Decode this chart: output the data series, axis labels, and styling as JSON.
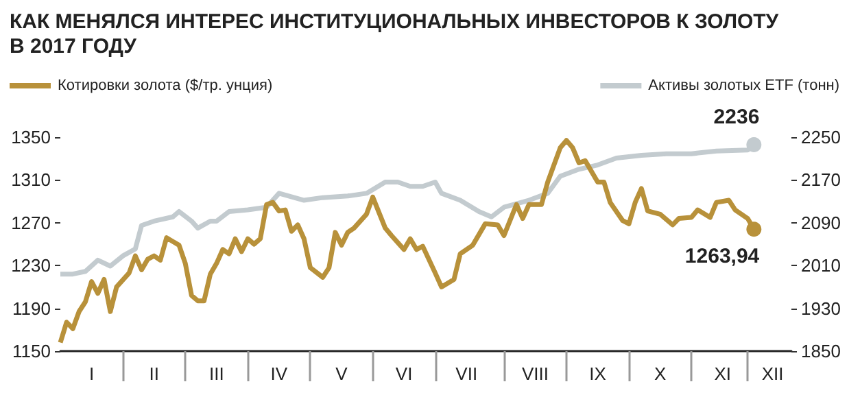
{
  "chart_data": {
    "type": "line",
    "title": "КАК МЕНЯЛСЯ ИНТЕРЕС ИНСТИТУЦИОНАЛЬНЫХ ИНВЕСТОРОВ К ЗОЛОТУ\nВ 2017 ГОДУ",
    "legend": "top",
    "marker": "none",
    "grid": false,
    "categories": [
      null,
      null,
      null,
      null,
      null,
      "I",
      null,
      null,
      null,
      null,
      null,
      null,
      null,
      null,
      null,
      "II",
      null,
      null,
      null,
      null,
      null,
      null,
      null,
      null,
      null,
      "III",
      null,
      null,
      null,
      null,
      null,
      null,
      null,
      null,
      null,
      "IV",
      null,
      null,
      null,
      null,
      null,
      null,
      null,
      null,
      null,
      "V",
      null,
      null,
      null,
      null,
      null,
      null,
      null,
      null,
      null,
      "VI",
      null,
      null,
      null,
      null,
      null,
      null,
      null,
      null,
      null,
      "VII",
      null,
      null,
      null,
      null,
      null,
      null,
      null,
      null,
      null,
      null,
      "VIII",
      null,
      null,
      null,
      null,
      null,
      null,
      null,
      null,
      null,
      "IX",
      null,
      null,
      null,
      null,
      null,
      null,
      null,
      null,
      null,
      "X",
      null,
      null,
      null,
      null,
      null,
      null,
      null,
      null,
      null,
      "XI",
      null,
      null,
      null,
      null,
      null,
      null,
      null,
      "XII",
      null,
      null,
      null
    ],
    "ylim": [
      1150,
      1350
    ],
    "yticks": [
      1150,
      1190,
      1230,
      1270,
      1310,
      1350
    ],
    "y2lim": [
      1850,
      2250
    ],
    "y2ticks": [
      1850,
      1930,
      2010,
      2090,
      2170,
      2250
    ],
    "series": [
      {
        "name": "Котировки золота ($/тр. унция)",
        "color": "#b8913a",
        "values": [
          1158,
          1177,
          1171,
          1187,
          1196,
          1215,
          1204,
          1217,
          1187,
          1210,
          null,
          1223,
          1239,
          1226,
          1236,
          1239,
          1235,
          1256,
          null,
          1249,
          1232,
          1202,
          1197,
          1197,
          1222,
          1232,
          1245,
          1241,
          1255,
          1243,
          1255,
          1250,
          1255,
          1287,
          1289,
          1281,
          1282,
          1262,
          1268,
          1255,
          1228,
          null,
          1219,
          1228,
          1261,
          1249,
          1261,
          1265,
          null,
          1278,
          1294,
          null,
          1265,
          1258,
          null,
          1245,
          1255,
          1245,
          1248,
          null,
          1223,
          1210,
          null,
          1217,
          1241,
          null,
          1249,
          null,
          1269,
          null,
          1268,
          1258,
          null,
          1287,
          1274,
          1287,
          null,
          1287,
          1308,
          1324,
          1340,
          1347,
          1340,
          1326,
          1328,
          null,
          1308,
          1308,
          1289,
          null,
          1272,
          1269,
          1289,
          1302,
          1281,
          null,
          1278,
          null,
          1268,
          1274,
          null,
          1275,
          1282,
          null,
          1275,
          1289,
          null,
          1291,
          1282,
          1278,
          1274,
          1263.94,
          null,
          null,
          null,
          null,
          null,
          null
        ],
        "value_labels": [
          null,
          null,
          null,
          null,
          null,
          null,
          null,
          null,
          null,
          null,
          null,
          null,
          null,
          null,
          null,
          null,
          null,
          null,
          null,
          null,
          null,
          null,
          null,
          null,
          null,
          null,
          null,
          null,
          null,
          null,
          null,
          null,
          null,
          null,
          null,
          null,
          null,
          null,
          null,
          null,
          null,
          null,
          null,
          null,
          null,
          null,
          null,
          null,
          null,
          null,
          null,
          null,
          null,
          null,
          null,
          null,
          null,
          null,
          null,
          null,
          null,
          null,
          null,
          null,
          null,
          null,
          null,
          null,
          null,
          null,
          null,
          null,
          null,
          null,
          null,
          null,
          null,
          null,
          null,
          null,
          null,
          null,
          null,
          null,
          null,
          null,
          null,
          null,
          null,
          null,
          null,
          null,
          null,
          null,
          null,
          null,
          null,
          null,
          null,
          null,
          null,
          null,
          null,
          null,
          null,
          null,
          null,
          null,
          null,
          null,
          null,
          "1263,94",
          null,
          null,
          null,
          null,
          null,
          null
        ]
      },
      {
        "name": "Активы золотых ETF (тонн)",
        "color": "#c3cbcf",
        "axis": "y2",
        "values": [
          1994,
          null,
          1994,
          null,
          1999,
          null,
          2020,
          null,
          2009,
          null,
          2028,
          null,
          2041,
          2085,
          null,
          2093,
          null,
          null,
          2101,
          2111,
          null,
          2093,
          2080,
          null,
          2093,
          2093,
          null,
          2111,
          null,
          null,
          2114,
          null,
          null,
          2119,
          null,
          2145,
          null,
          null,
          null,
          2132,
          null,
          null,
          2137,
          null,
          null,
          null,
          2140,
          null,
          null,
          2145,
          null,
          null,
          2166,
          null,
          2166,
          null,
          2158,
          null,
          2158,
          null,
          2166,
          2145,
          null,
          null,
          2132,
          null,
          null,
          2111,
          null,
          2101,
          null,
          2119,
          null,
          null,
          null,
          2132,
          null,
          null,
          2145,
          null,
          2177,
          null,
          null,
          2190,
          null,
          null,
          2198,
          null,
          null,
          2211,
          null,
          null,
          null,
          2216,
          null,
          null,
          null,
          2219,
          null,
          null,
          null,
          2219,
          null,
          null,
          null,
          2224,
          null,
          null,
          null,
          null,
          2226,
          2236,
          null,
          null,
          null,
          null,
          null,
          null
        ],
        "value_labels": [
          null,
          null,
          null,
          null,
          null,
          null,
          null,
          null,
          null,
          null,
          null,
          null,
          null,
          null,
          null,
          null,
          null,
          null,
          null,
          null,
          null,
          null,
          null,
          null,
          null,
          null,
          null,
          null,
          null,
          null,
          null,
          null,
          null,
          null,
          null,
          null,
          null,
          null,
          null,
          null,
          null,
          null,
          null,
          null,
          null,
          null,
          null,
          null,
          null,
          null,
          null,
          null,
          null,
          null,
          null,
          null,
          null,
          null,
          null,
          null,
          null,
          null,
          null,
          null,
          null,
          null,
          null,
          null,
          null,
          null,
          null,
          null,
          null,
          null,
          null,
          null,
          null,
          null,
          null,
          null,
          null,
          null,
          null,
          null,
          null,
          null,
          null,
          null,
          null,
          null,
          null,
          null,
          null,
          null,
          null,
          null,
          null,
          null,
          null,
          null,
          null,
          null,
          null,
          null,
          null,
          null,
          null,
          null,
          null,
          null,
          null,
          "2236",
          null,
          null,
          null,
          null,
          null,
          null
        ]
      }
    ]
  }
}
